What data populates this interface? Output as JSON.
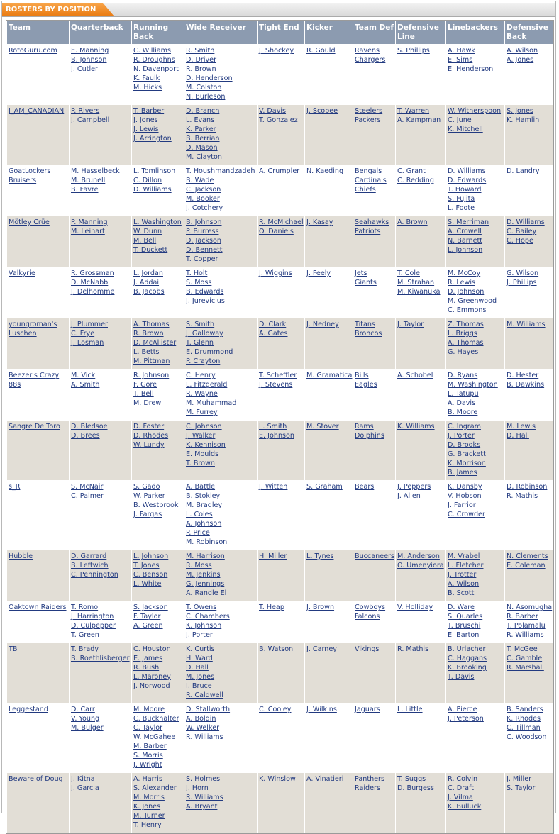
{
  "header": {
    "title": "ROSTERS BY POSITION"
  },
  "table": {
    "headers": [
      "Team",
      "Quarterback",
      "Running Back",
      "Wide Receiver",
      "Tight End",
      "Kicker",
      "Team Def",
      "Defensive Line",
      "Linebackers",
      "Defensive Back"
    ],
    "rows": [
      {
        "team": "RotoGuru.com",
        "players": [
          [
            "E. Manning",
            "B. Johnson",
            "J. Cutler"
          ],
          [
            "C. Williams",
            "R. Droughns",
            "N. Davenport",
            "K. Faulk",
            "M. Hicks"
          ],
          [
            "R. Smith",
            "D. Driver",
            "R. Brown",
            "D. Henderson",
            "M. Colston",
            "N. Burleson"
          ],
          [
            "J. Shockey"
          ],
          [
            "R. Gould"
          ],
          [
            "Ravens",
            "Chargers"
          ],
          [
            "S. Phillips"
          ],
          [
            "A. Hawk",
            "E. Sims",
            "E. Henderson"
          ],
          [
            "A. Wilson",
            "A. Jones"
          ]
        ]
      },
      {
        "team": "I_AM_CANADIAN",
        "players": [
          [
            "P. Rivers",
            "J. Campbell"
          ],
          [
            "T. Barber",
            "J. Jones",
            "J. Lewis",
            "J. Arrington"
          ],
          [
            "D. Branch",
            "L. Evans",
            "K. Parker",
            "B. Berrian",
            "D. Mason",
            "M. Clayton"
          ],
          [
            "V. Davis",
            "T. Gonzalez"
          ],
          [
            "J. Scobee"
          ],
          [
            "Steelers",
            "Packers"
          ],
          [
            "T. Warren",
            "A. Kampman"
          ],
          [
            "W. Witherspoon",
            "C. June",
            "K. Mitchell"
          ],
          [
            "S. Jones",
            "K. Hamlin"
          ]
        ]
      },
      {
        "team": "GoatLockers Bruisers",
        "players": [
          [
            "M. Hasselbeck",
            "M. Brunell",
            "B. Favre"
          ],
          [
            "L. Tomlinson",
            "C. Dillon",
            "D. Williams"
          ],
          [
            "T. Houshmandzadeh",
            "B. Wade",
            "C. Jackson",
            "M. Booker",
            "J. Cotchery"
          ],
          [
            "A. Crumpler"
          ],
          [
            "N. Kaeding"
          ],
          [
            "Bengals",
            "Cardinals",
            "Chiefs"
          ],
          [
            "C. Grant",
            "C. Redding"
          ],
          [
            "D. Williams",
            "D. Edwards",
            "T. Howard",
            "S. Fujita",
            "L. Foote"
          ],
          [
            "D. Landry"
          ]
        ]
      },
      {
        "team": "Mötley Crüe",
        "players": [
          [
            "P. Manning",
            "M. Leinart"
          ],
          [
            "L. Washington",
            "W. Dunn",
            "M. Bell",
            "T. Duckett"
          ],
          [
            "B. Johnson",
            "P. Burress",
            "D. Jackson",
            "D. Bennett",
            "T. Copper"
          ],
          [
            "R. McMichael",
            "O. Daniels"
          ],
          [
            "J. Kasay"
          ],
          [
            "Seahawks",
            "Patriots"
          ],
          [
            "A. Brown"
          ],
          [
            "S. Merriman",
            "A. Crowell",
            "N. Barnett",
            "L. Johnson"
          ],
          [
            "D. Williams",
            "C. Bailey",
            "C. Hope"
          ]
        ]
      },
      {
        "team": "Valkyrie",
        "players": [
          [
            "R. Grossman",
            "D. McNabb",
            "J. Delhomme"
          ],
          [
            "L. Jordan",
            "J. Addai",
            "B. Jacobs"
          ],
          [
            "T. Holt",
            "S. Moss",
            "B. Edwards",
            "J. Jurevicius"
          ],
          [
            "J. Wiggins"
          ],
          [
            "J. Feely"
          ],
          [
            "Jets",
            "Giants"
          ],
          [
            "T. Cole",
            "M. Strahan",
            "M. Kiwanuka"
          ],
          [
            "M. McCoy",
            "R. Lewis",
            "D. Johnson",
            "M. Greenwood",
            "C. Emmons"
          ],
          [
            "G. Wilson",
            "J. Phillips"
          ]
        ]
      },
      {
        "team": "youngroman's Luschen",
        "players": [
          [
            "J. Plummer",
            "C. Frye",
            "J. Losman"
          ],
          [
            "A. Thomas",
            "R. Brown",
            "D. McAllister",
            "L. Betts",
            "M. Pittman"
          ],
          [
            "S. Smith",
            "J. Galloway",
            "T. Glenn",
            "E. Drummond",
            "P. Crayton"
          ],
          [
            "D. Clark",
            "A. Gates"
          ],
          [
            "J. Nedney"
          ],
          [
            "Titans",
            "Broncos"
          ],
          [
            "J. Taylor"
          ],
          [
            "Z. Thomas",
            "L. Briggs",
            "A. Thomas",
            "G. Hayes"
          ],
          [
            "M. Williams"
          ]
        ]
      },
      {
        "team": "Beezer's Crazy 88s",
        "players": [
          [
            "M. Vick",
            "A. Smith"
          ],
          [
            "R. Johnson",
            "F. Gore",
            "T. Bell",
            "M. Drew"
          ],
          [
            "C. Henry",
            "L. Fitzgerald",
            "R. Wayne",
            "M. Muhammad",
            "M. Furrey"
          ],
          [
            "T. Scheffler",
            "J. Stevens"
          ],
          [
            "M. Gramatica"
          ],
          [
            "Bills",
            "Eagles"
          ],
          [
            "A. Schobel"
          ],
          [
            "D. Ryans",
            "M. Washington",
            "L. Tatupu",
            "A. Davis",
            "B. Moore"
          ],
          [
            "D. Hester",
            "B. Dawkins"
          ]
        ]
      },
      {
        "team": "Sangre De Toro",
        "players": [
          [
            "D. Bledsoe",
            "D. Brees"
          ],
          [
            "D. Foster",
            "D. Rhodes",
            "W. Lundy"
          ],
          [
            "C. Johnson",
            "J. Walker",
            "K. Kennison",
            "E. Moulds",
            "T. Brown"
          ],
          [
            "L. Smith",
            "E. Johnson"
          ],
          [
            "M. Stover"
          ],
          [
            "Rams",
            "Dolphins"
          ],
          [
            "K. Williams"
          ],
          [
            "C. Ingram",
            "J. Porter",
            "D. Brooks",
            "G. Brackett",
            "K. Morrison",
            "B. James"
          ],
          [
            "M. Lewis",
            "D. Hall"
          ]
        ]
      },
      {
        "team": "s_R",
        "players": [
          [
            "S. McNair",
            "C. Palmer"
          ],
          [
            "S. Gado",
            "W. Parker",
            "B. Westbrook",
            "J. Fargas"
          ],
          [
            "A. Battle",
            "B. Stokley",
            "M. Bradley",
            "L. Coles",
            "A. Johnson",
            "P. Price",
            "M. Robinson"
          ],
          [
            "J. Witten"
          ],
          [
            "S. Graham"
          ],
          [
            "Bears"
          ],
          [
            "J. Peppers",
            "J. Allen"
          ],
          [
            "K. Dansby",
            "V. Hobson",
            "J. Farrior",
            "C. Crowder"
          ],
          [
            "D. Robinson",
            "R. Mathis"
          ]
        ]
      },
      {
        "team": "Hubble",
        "players": [
          [
            "D. Garrard",
            "B. Leftwich",
            "C. Pennington"
          ],
          [
            "L. Johnson",
            "T. Jones",
            "C. Benson",
            "L. White"
          ],
          [
            "M. Harrison",
            "R. Moss",
            "M. Jenkins",
            "G. Jennings",
            "A. Randle El"
          ],
          [
            "H. Miller"
          ],
          [
            "L. Tynes"
          ],
          [
            "Buccaneers"
          ],
          [
            "M. Anderson",
            "O. Umenyiora"
          ],
          [
            "M. Vrabel",
            "L. Fletcher",
            "J. Trotter",
            "A. Wilson",
            "B. Scott"
          ],
          [
            "N. Clements",
            "E. Coleman"
          ]
        ]
      },
      {
        "team": "Oaktown Raiders",
        "players": [
          [
            "T. Romo",
            "J. Harrington",
            "D. Culpepper",
            "T. Green"
          ],
          [
            "S. Jackson",
            "F. Taylor",
            "A. Green"
          ],
          [
            "T. Owens",
            "C. Chambers",
            "K. Johnson",
            "J. Porter"
          ],
          [
            "T. Heap"
          ],
          [
            "J. Brown"
          ],
          [
            "Cowboys",
            "Falcons"
          ],
          [
            "V. Holliday"
          ],
          [
            "D. Ware",
            "S. Quarles",
            "T. Bruschi",
            "E. Barton"
          ],
          [
            "N. Asomugha",
            "R. Barber",
            "T. Polamalu",
            "R. Williams"
          ]
        ]
      },
      {
        "team": "TB",
        "players": [
          [
            "T. Brady",
            "B. Roethlisberger"
          ],
          [
            "C. Houston",
            "E. James",
            "R. Bush",
            "L. Maroney",
            "J. Norwood"
          ],
          [
            "K. Curtis",
            "H. Ward",
            "D. Hall",
            "M. Jones",
            "I. Bruce",
            "R. Caldwell"
          ],
          [
            "B. Watson"
          ],
          [
            "J. Carney"
          ],
          [
            "Vikings"
          ],
          [
            "R. Mathis"
          ],
          [
            "B. Urlacher",
            "C. Haggans",
            "K. Brooking",
            "T. Davis"
          ],
          [
            "T. McGee",
            "C. Gamble",
            "R. Marshall"
          ]
        ]
      },
      {
        "team": "Leggestand",
        "players": [
          [
            "D. Carr",
            "V. Young",
            "M. Bulger"
          ],
          [
            "M. Moore",
            "C. Buckhalter",
            "C. Taylor",
            "W. McGahee",
            "M. Barber",
            "S. Morris",
            "J. Wright"
          ],
          [
            "D. Stallworth",
            "A. Boldin",
            "W. Welker",
            "R. Williams"
          ],
          [
            "C. Cooley"
          ],
          [
            "J. Wilkins"
          ],
          [
            "Jaguars"
          ],
          [
            "L. Little"
          ],
          [
            "A. Pierce",
            "J. Peterson"
          ],
          [
            "B. Sanders",
            "K. Rhodes",
            "C. Tillman",
            "C. Woodson"
          ]
        ]
      },
      {
        "team": "Beware of Doug",
        "players": [
          [
            "J. Kitna",
            "J. Garcia"
          ],
          [
            "A. Harris",
            "S. Alexander",
            "M. Morris",
            "K. Jones",
            "M. Turner",
            "T. Henry"
          ],
          [
            "S. Holmes",
            "J. Horn",
            "R. Williams",
            "A. Bryant"
          ],
          [
            "K. Winslow"
          ],
          [
            "A. Vinatieri"
          ],
          [
            "Panthers",
            "Raiders"
          ],
          [
            "T. Suggs",
            "D. Burgess"
          ],
          [
            "R. Colvin",
            "C. Draft",
            "J. Vilma",
            "K. Bulluck"
          ],
          [
            "J. Miller",
            "S. Taylor"
          ]
        ]
      }
    ]
  }
}
